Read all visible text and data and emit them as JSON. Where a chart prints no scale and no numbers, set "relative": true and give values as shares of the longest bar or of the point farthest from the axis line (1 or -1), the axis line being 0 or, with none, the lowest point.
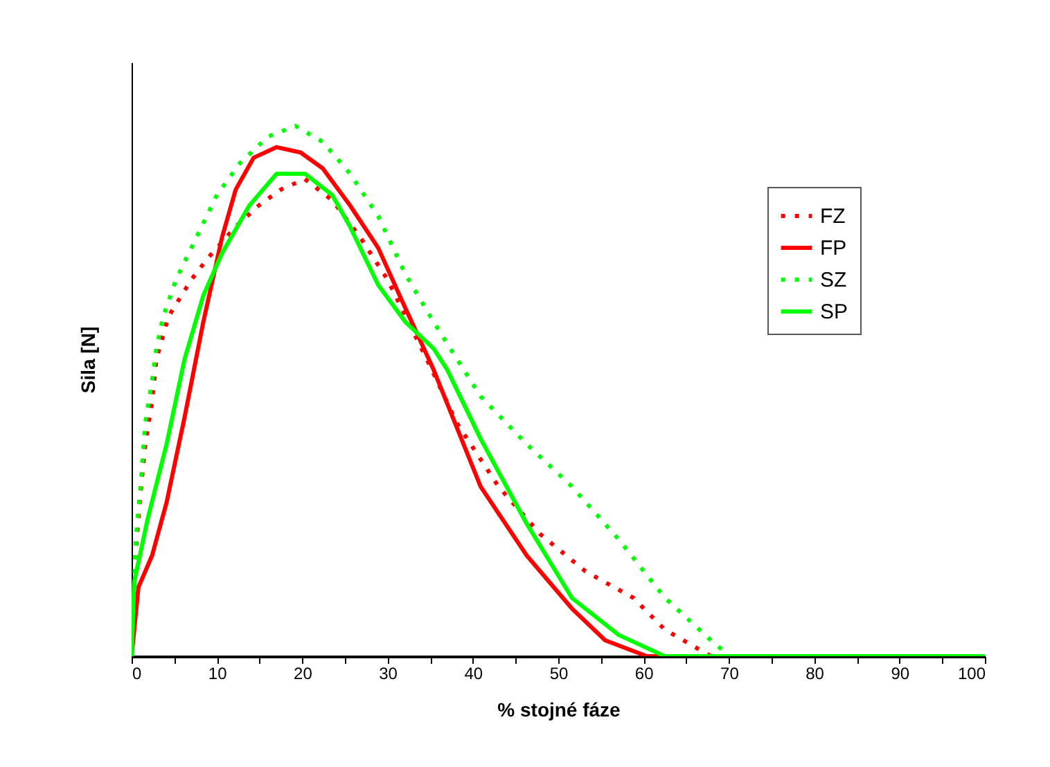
{
  "chart_data": {
    "type": "line",
    "relative": true,
    "xlabel": "% stojné fáze",
    "ylabel": "Sila [N]",
    "xlim": [
      0,
      100
    ],
    "xticks": [
      0,
      {
        "value": 5,
        "label": null
      },
      10,
      {
        "value": 15,
        "label": null
      },
      20,
      {
        "value": 25,
        "label": null
      },
      30,
      {
        "value": 35,
        "label": null
      },
      40,
      {
        "value": 45,
        "label": null
      },
      50,
      {
        "value": 55,
        "label": null
      },
      60,
      {
        "value": 65,
        "label": null
      },
      70,
      {
        "value": 75,
        "label": null
      },
      80,
      {
        "value": 85,
        "label": null
      },
      90,
      {
        "value": 95,
        "label": null
      },
      100
    ],
    "grid": false,
    "legend": "top right",
    "marker": "none",
    "series": [
      {
        "name": "FZ",
        "color": "#ff0000",
        "line_style": "dotted",
        "x": [
          0,
          0.5,
          1,
          1.6,
          2.4,
          2.9,
          4.3,
          7,
          8.9,
          12.2,
          14.9,
          17.5,
          20.3,
          23.5,
          26.8,
          30,
          34.9,
          38.1,
          43,
          47.9,
          53.2,
          58.8,
          62.5,
          67.9,
          100
        ],
        "values": [
          0,
          0.2,
          0.3,
          0.4,
          0.48,
          0.56,
          0.64,
          0.71,
          0.75,
          0.81,
          0.85,
          0.88,
          0.9,
          0.86,
          0.79,
          0.71,
          0.55,
          0.44,
          0.32,
          0.23,
          0.16,
          0.11,
          0.05,
          0,
          0
        ]
      },
      {
        "name": "FP",
        "color": "#ff0000",
        "line_style": "solid",
        "x": [
          0,
          0.8,
          2.4,
          4.1,
          6.2,
          8.4,
          10.6,
          12.2,
          14.3,
          17,
          19.8,
          22.4,
          25.6,
          28.9,
          31.7,
          35.4,
          40.9,
          46.3,
          51.6,
          55.5,
          60.4,
          100
        ],
        "values": [
          0,
          0.13,
          0.19,
          0.29,
          0.45,
          0.63,
          0.79,
          0.88,
          0.94,
          0.96,
          0.95,
          0.92,
          0.85,
          0.77,
          0.67,
          0.54,
          0.32,
          0.19,
          0.09,
          0.03,
          0,
          0
        ]
      },
      {
        "name": "SZ",
        "color": "#00ff00",
        "line_style": "dotted",
        "x": [
          0,
          0.5,
          1.1,
          1.6,
          2.4,
          2.9,
          3.7,
          5.2,
          7.3,
          10,
          12.7,
          16,
          19.2,
          22.4,
          25.6,
          28.9,
          32.1,
          35.4,
          40.9,
          46.3,
          51.6,
          57.1,
          62.5,
          67.9,
          70.1,
          100
        ],
        "values": [
          0,
          0.22,
          0.33,
          0.44,
          0.52,
          0.58,
          0.64,
          0.71,
          0.78,
          0.87,
          0.93,
          0.98,
          1,
          0.97,
          0.91,
          0.83,
          0.72,
          0.63,
          0.49,
          0.4,
          0.32,
          0.22,
          0.11,
          0.03,
          0,
          0
        ]
      },
      {
        "name": "SP",
        "color": "#00ff00",
        "line_style": "solid",
        "x": [
          0,
          0.3,
          1.9,
          4.1,
          6.2,
          8.4,
          10.6,
          13.8,
          17,
          20.3,
          23.5,
          25.6,
          28.9,
          32.1,
          35.4,
          37,
          40.9,
          46.3,
          51.6,
          57.1,
          62.5,
          100
        ],
        "values": [
          0,
          0.14,
          0.26,
          0.4,
          0.56,
          0.68,
          0.76,
          0.85,
          0.91,
          0.91,
          0.87,
          0.81,
          0.7,
          0.63,
          0.58,
          0.54,
          0.41,
          0.25,
          0.11,
          0.04,
          0,
          0
        ]
      }
    ]
  }
}
